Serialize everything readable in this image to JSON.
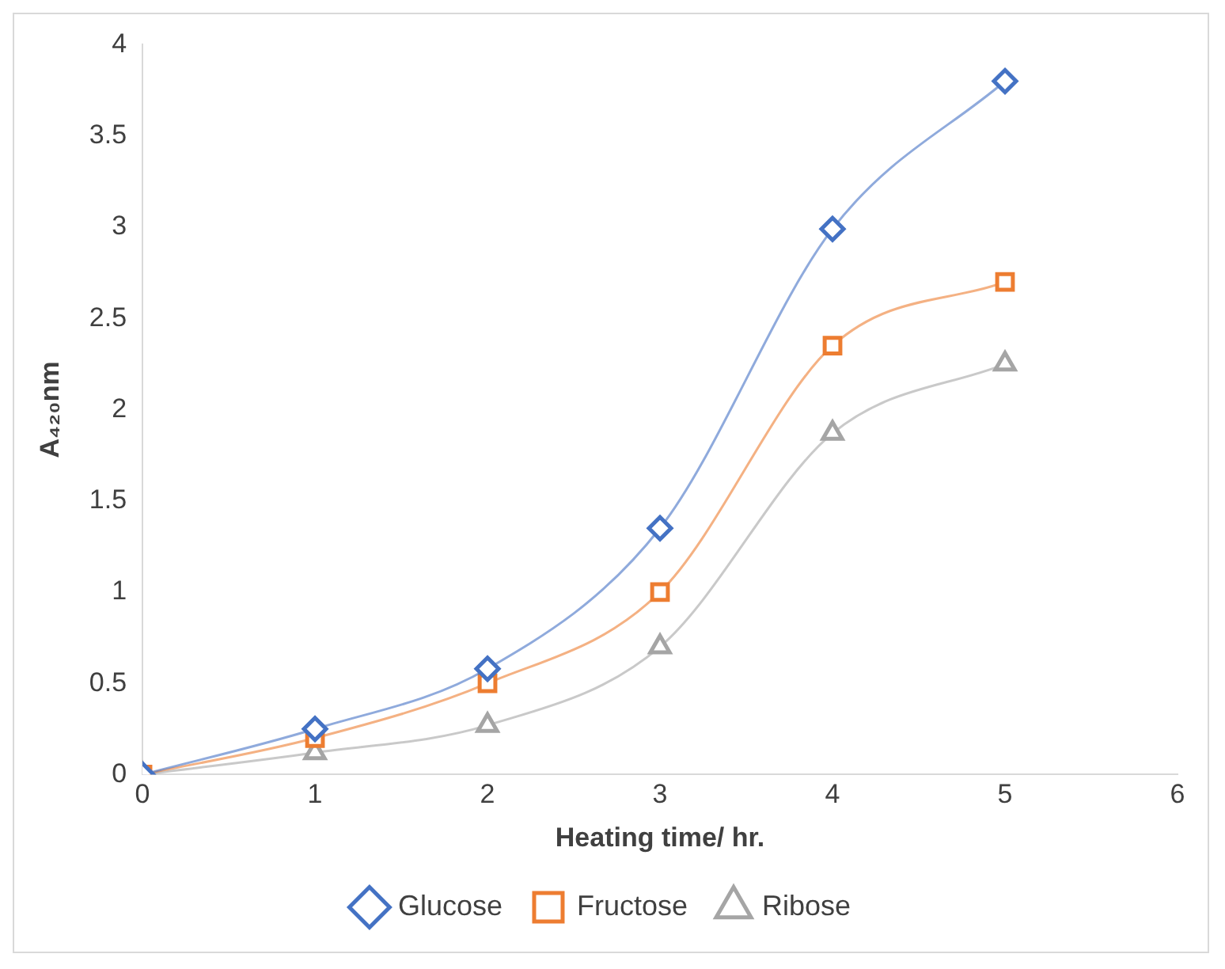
{
  "chart_data": {
    "type": "line",
    "xlabel": "Heating time/ hr.",
    "ylabel": "A₄₂₀nm",
    "x": [
      0,
      1,
      2,
      3,
      4,
      5
    ],
    "series": [
      {
        "name": "Glucose",
        "color": "#4472c4",
        "marker": "diamond",
        "values": [
          0,
          0.25,
          0.58,
          1.35,
          2.99,
          3.8
        ]
      },
      {
        "name": "Fructose",
        "color": "#ed7d31",
        "marker": "square",
        "values": [
          0,
          0.2,
          0.5,
          1.0,
          2.35,
          2.7
        ]
      },
      {
        "name": "Ribose",
        "color": "#a5a5a5",
        "marker": "triangle",
        "values": [
          0,
          0.12,
          0.27,
          0.7,
          1.87,
          2.25
        ]
      }
    ],
    "xlim": [
      0,
      6
    ],
    "xticks": [
      0,
      1,
      2,
      3,
      4,
      5,
      6
    ],
    "ylim": [
      0,
      4
    ],
    "yticks": [
      0,
      0.5,
      1,
      1.5,
      2,
      2.5,
      3,
      3.5,
      4
    ],
    "grid": false,
    "legend": "bottom"
  }
}
